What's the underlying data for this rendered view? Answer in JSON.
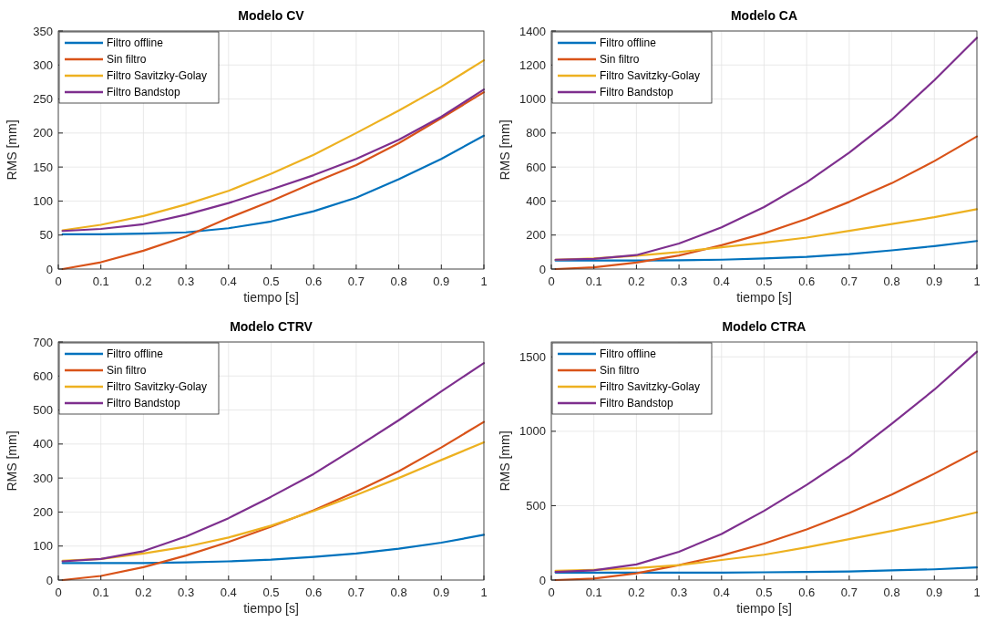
{
  "chart_data": [
    {
      "type": "line",
      "title": "Modelo CV",
      "xlabel": "tiempo [s]",
      "ylabel": "RMS [mm]",
      "x": [
        0.01,
        0.1,
        0.2,
        0.3,
        0.4,
        0.5,
        0.6,
        0.7,
        0.8,
        0.9,
        1.0
      ],
      "xlim": [
        0,
        1
      ],
      "xticks": [
        0,
        0.1,
        0.2,
        0.3,
        0.4,
        0.5,
        0.6,
        0.7,
        0.8,
        0.9,
        1
      ],
      "ylim": [
        0,
        350
      ],
      "yticks": [
        0,
        50,
        100,
        150,
        200,
        250,
        300,
        350
      ],
      "grid": true,
      "legend": "top left",
      "series": [
        {
          "name": "Filtro offline",
          "color": "#0072bd",
          "values": [
            51,
            51,
            52,
            54,
            60,
            70,
            85,
            105,
            132,
            162,
            196
          ]
        },
        {
          "name": "Sin filtro",
          "color": "#d95319",
          "values": [
            0,
            10,
            27,
            48,
            75,
            100,
            127,
            153,
            185,
            222,
            260
          ]
        },
        {
          "name": "Filtro Savitzky-Golay",
          "color": "#edb120",
          "values": [
            57,
            65,
            78,
            95,
            115,
            140,
            168,
            200,
            233,
            268,
            307
          ]
        },
        {
          "name": "Filtro Bandstop",
          "color": "#7e2f8e",
          "values": [
            56,
            59,
            66,
            80,
            97,
            117,
            138,
            162,
            190,
            224,
            264
          ]
        }
      ]
    },
    {
      "type": "line",
      "title": "Modelo CA",
      "xlabel": "tiempo [s]",
      "ylabel": "RMS [mm]",
      "x": [
        0.01,
        0.1,
        0.2,
        0.3,
        0.4,
        0.5,
        0.6,
        0.7,
        0.8,
        0.9,
        1.0
      ],
      "xlim": [
        0,
        1
      ],
      "xticks": [
        0,
        0.1,
        0.2,
        0.3,
        0.4,
        0.5,
        0.6,
        0.7,
        0.8,
        0.9,
        1
      ],
      "ylim": [
        0,
        1400
      ],
      "yticks": [
        0,
        200,
        400,
        600,
        800,
        1000,
        1200,
        1400
      ],
      "grid": true,
      "legend": "top left",
      "series": [
        {
          "name": "Filtro offline",
          "color": "#0072bd",
          "values": [
            50,
            50,
            50,
            52,
            55,
            62,
            72,
            88,
            110,
            135,
            165
          ]
        },
        {
          "name": "Sin filtro",
          "color": "#d95319",
          "values": [
            0,
            10,
            38,
            80,
            140,
            210,
            295,
            395,
            505,
            635,
            780
          ]
        },
        {
          "name": "Filtro Savitzky-Golay",
          "color": "#edb120",
          "values": [
            55,
            62,
            78,
            100,
            128,
            155,
            185,
            225,
            265,
            305,
            352
          ]
        },
        {
          "name": "Filtro Bandstop",
          "color": "#7e2f8e",
          "values": [
            55,
            60,
            82,
            150,
            245,
            365,
            510,
            685,
            880,
            1110,
            1360
          ]
        }
      ]
    },
    {
      "type": "line",
      "title": "Modelo CTRV",
      "xlabel": "tiempo [s]",
      "ylabel": "RMS [mm]",
      "x": [
        0.01,
        0.1,
        0.2,
        0.3,
        0.4,
        0.5,
        0.6,
        0.7,
        0.8,
        0.9,
        1.0
      ],
      "xlim": [
        0,
        1
      ],
      "xticks": [
        0,
        0.1,
        0.2,
        0.3,
        0.4,
        0.5,
        0.6,
        0.7,
        0.8,
        0.9,
        1
      ],
      "ylim": [
        0,
        700
      ],
      "yticks": [
        0,
        100,
        200,
        300,
        400,
        500,
        600,
        700
      ],
      "grid": true,
      "legend": "top left",
      "series": [
        {
          "name": "Filtro offline",
          "color": "#0072bd",
          "values": [
            50,
            50,
            50,
            52,
            55,
            60,
            68,
            78,
            92,
            110,
            133
          ]
        },
        {
          "name": "Sin filtro",
          "color": "#d95319",
          "values": [
            0,
            12,
            38,
            72,
            112,
            157,
            205,
            260,
            320,
            390,
            465
          ]
        },
        {
          "name": "Filtro Savitzky-Golay",
          "color": "#edb120",
          "values": [
            57,
            62,
            78,
            98,
            125,
            160,
            203,
            250,
            300,
            353,
            405
          ]
        },
        {
          "name": "Filtro Bandstop",
          "color": "#7e2f8e",
          "values": [
            55,
            62,
            85,
            128,
            182,
            245,
            312,
            390,
            470,
            555,
            638
          ]
        }
      ]
    },
    {
      "type": "line",
      "title": "Modelo CTRA",
      "xlabel": "tiempo [s]",
      "ylabel": "RMS [mm]",
      "x": [
        0.01,
        0.1,
        0.2,
        0.3,
        0.4,
        0.5,
        0.6,
        0.7,
        0.8,
        0.9,
        1.0
      ],
      "xlim": [
        0,
        1
      ],
      "xticks": [
        0,
        0.1,
        0.2,
        0.3,
        0.4,
        0.5,
        0.6,
        0.7,
        0.8,
        0.9,
        1
      ],
      "ylim": [
        0,
        1600
      ],
      "yticks": [
        0,
        500,
        1000,
        1500
      ],
      "grid": true,
      "legend": "top left",
      "series": [
        {
          "name": "Filtro offline",
          "color": "#0072bd",
          "values": [
            50,
            50,
            50,
            50,
            50,
            52,
            55,
            58,
            65,
            72,
            85
          ]
        },
        {
          "name": "Sin filtro",
          "color": "#d95319",
          "values": [
            0,
            10,
            45,
            100,
            165,
            245,
            340,
            450,
            575,
            715,
            865
          ]
        },
        {
          "name": "Filtro Savitzky-Golay",
          "color": "#edb120",
          "values": [
            62,
            68,
            80,
            100,
            135,
            170,
            220,
            275,
            330,
            390,
            455
          ]
        },
        {
          "name": "Filtro Bandstop",
          "color": "#7e2f8e",
          "values": [
            55,
            65,
            105,
            190,
            310,
            465,
            640,
            830,
            1050,
            1280,
            1535
          ]
        }
      ]
    }
  ]
}
